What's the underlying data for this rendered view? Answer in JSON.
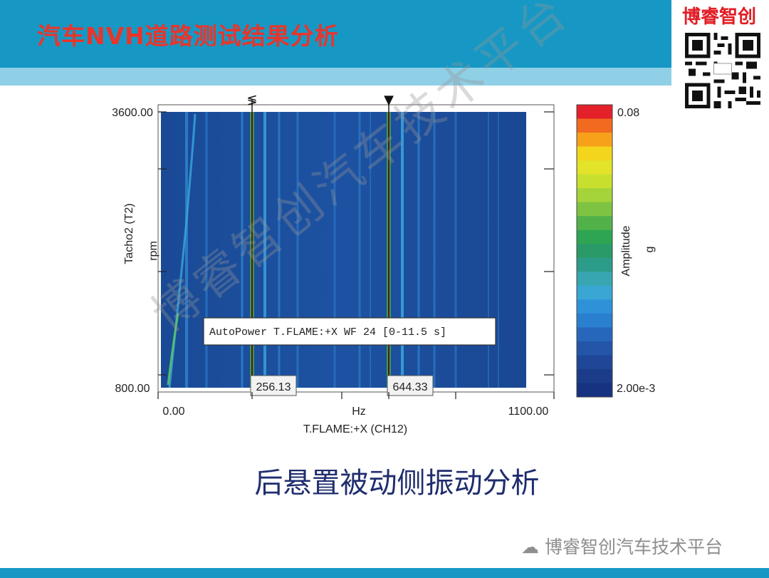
{
  "slide": {
    "title": "汽车NVH道路测试结果分析",
    "brand": "博睿智创",
    "caption": "后悬置被动侧振动分析",
    "footer_brand": "博睿智创汽车技术平台",
    "watermark": "博睿智创汽车技术平台"
  },
  "colors": {
    "header": "#1798c4",
    "header_light": "#8fd0e6",
    "title_red": "#e8352b",
    "plot_bg": "#1a4d9c",
    "caption": "#1f2d6e"
  },
  "chart_data": {
    "type": "heatmap",
    "title": "",
    "xlabel": "T.FLAME:+X (CH12)",
    "xunit": "Hz",
    "ylabel": "Tacho2 (T2)",
    "yunit": "rpm",
    "xlim": [
      0,
      1100
    ],
    "ylim": [
      800,
      3600
    ],
    "x_tick_labels": [
      "0.00",
      "1100.00"
    ],
    "y_tick_labels": [
      "800.00",
      "3600.00"
    ],
    "annotation": "AutoPower T.FLAME:+X WF 24 [0-11.5 s]",
    "cursors": [
      {
        "x": 256.13,
        "label": "256.13",
        "marker": "≶"
      },
      {
        "x": 644.33,
        "label": "644.33",
        "marker": "▼"
      }
    ],
    "colorbar": {
      "label": "Amplitude",
      "unit": "g",
      "max_label": "0.08",
      "min_label": "2.00e-3",
      "colors": [
        "#e4202a",
        "#f26a20",
        "#f7a11b",
        "#f2d51c",
        "#e3e32a",
        "#c8df2e",
        "#a4d33a",
        "#7ec342",
        "#52b24a",
        "#2ea552",
        "#2a9a68",
        "#2c9c8a",
        "#37a6b0",
        "#3aa6d4",
        "#2f92d8",
        "#2a7fcf",
        "#2767bb",
        "#2356a8",
        "#1f4697",
        "#1b3c89",
        "#173280"
      ]
    }
  }
}
